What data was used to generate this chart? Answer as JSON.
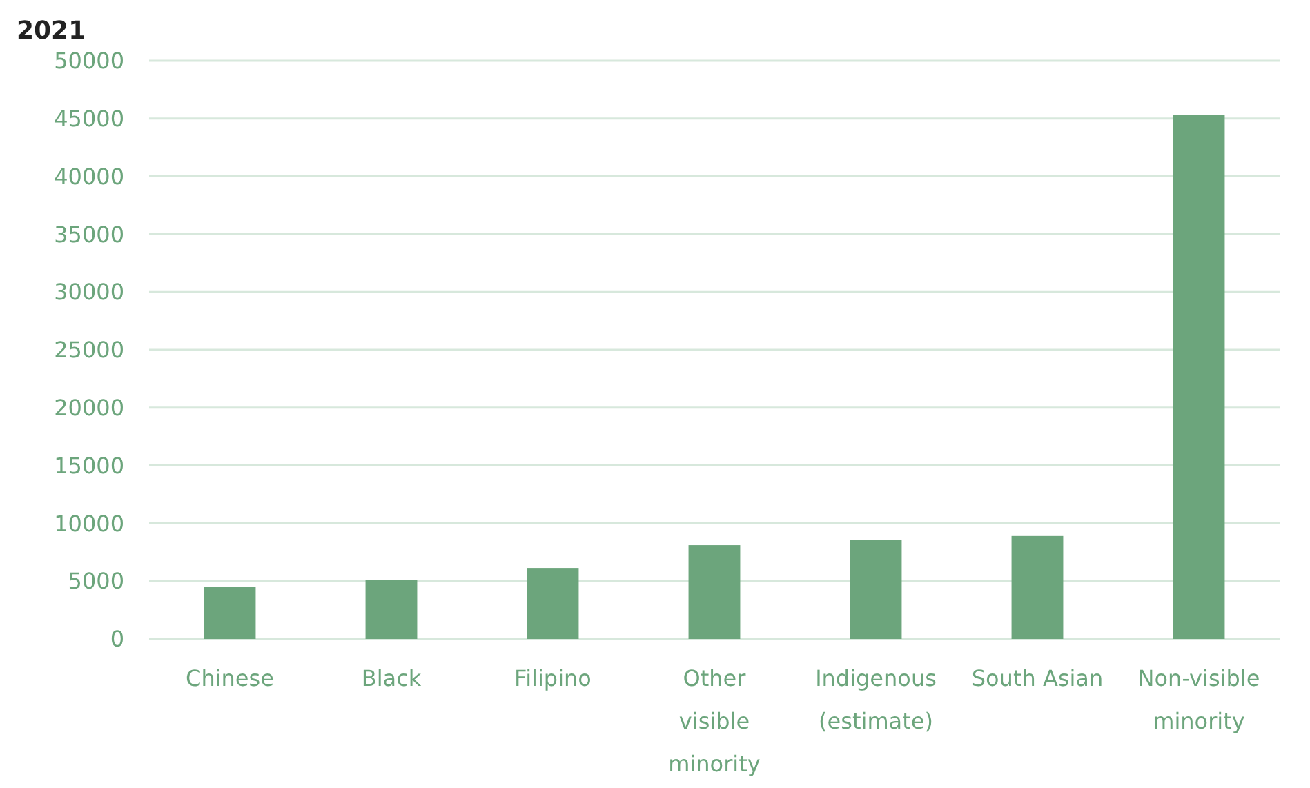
{
  "chart_data": {
    "type": "bar",
    "title": "2021",
    "categories": [
      "Chinese",
      "Black",
      "Filipino",
      "Other visible minority",
      "Indigenous (estimate)",
      "South Asian",
      "Non-visible minority"
    ],
    "values": [
      4500,
      5100,
      6140,
      8110,
      8560,
      8900,
      45300
    ],
    "color": "#6ca57c",
    "ylim": [
      0,
      50000
    ],
    "yticks": [
      0,
      5000,
      10000,
      15000,
      20000,
      25000,
      30000,
      35000,
      40000,
      45000,
      50000
    ],
    "grid": "y"
  }
}
